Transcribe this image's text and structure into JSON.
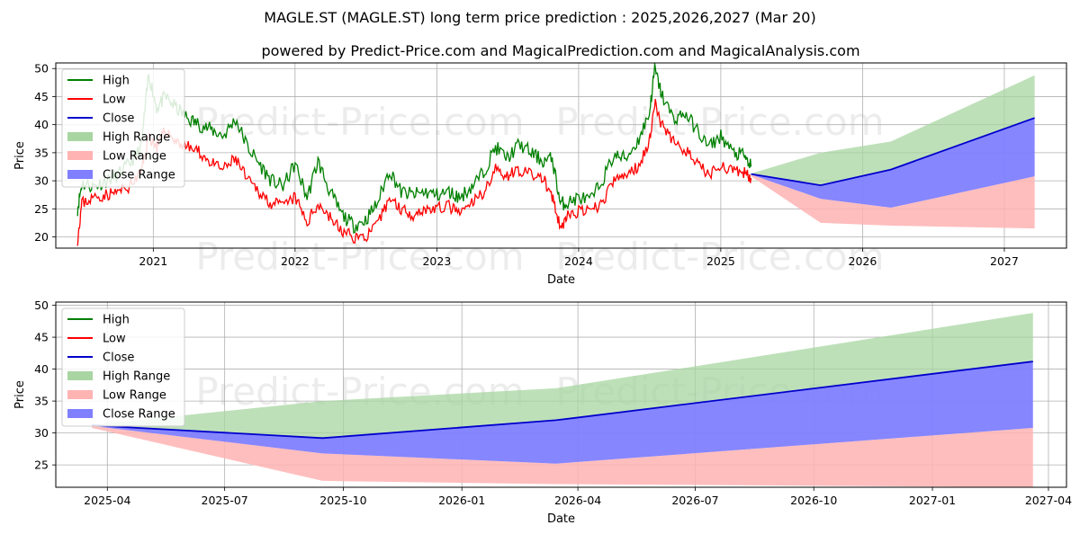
{
  "title": "MAGLE.ST (MAGLE.ST) long term price prediction : 2025,2026,2027 (Mar 20)",
  "subtitle": "powered by Predict-Price.com and MagicalPrediction.com and MagicalAnalysis.com",
  "watermark": "Predict-Price.com",
  "colors": {
    "high": "#008000",
    "low": "#ff0000",
    "close": "#0000cc",
    "high_range": "#a8d5a2",
    "low_range": "#ffb3b3",
    "close_range": "#7f7fff"
  },
  "chart_data": [
    {
      "type": "line",
      "xlabel": "Date",
      "ylabel": "Price",
      "xlim": [
        "2020-04-25",
        "2027-06-10"
      ],
      "ylim": [
        18,
        51
      ],
      "x_ticks": [
        "2021",
        "2022",
        "2023",
        "2024",
        "2025",
        "2026",
        "2027"
      ],
      "x_tick_dates": [
        "2021-01-01",
        "2022-01-01",
        "2023-01-01",
        "2024-01-01",
        "2025-01-01",
        "2026-01-01",
        "2027-01-01"
      ],
      "y_ticks": [
        20,
        25,
        30,
        35,
        40,
        45,
        50
      ],
      "grid": true,
      "legend": "top-left",
      "legend_entries": [
        "High",
        "Low",
        "Close",
        "High Range",
        "Low Range",
        "Close Range"
      ],
      "history": {
        "dates": [
          "2020-06-20",
          "2020-07-01",
          "2020-08-01",
          "2020-09-01",
          "2020-10-01",
          "2020-11-01",
          "2020-12-01",
          "2020-12-20",
          "2021-01-10",
          "2021-02-01",
          "2021-03-01",
          "2021-04-01",
          "2021-05-01",
          "2021-06-01",
          "2021-07-01",
          "2021-08-01",
          "2021-09-01",
          "2021-10-01",
          "2021-11-01",
          "2021-12-01",
          "2022-01-01",
          "2022-02-01",
          "2022-03-01",
          "2022-04-01",
          "2022-05-01",
          "2022-06-01",
          "2022-07-01",
          "2022-08-01",
          "2022-09-01",
          "2022-10-01",
          "2022-11-01",
          "2022-12-01",
          "2023-01-01",
          "2023-02-01",
          "2023-03-01",
          "2023-04-01",
          "2023-05-01",
          "2023-06-01",
          "2023-07-01",
          "2023-08-01",
          "2023-09-01",
          "2023-10-01",
          "2023-10-25",
          "2023-11-15",
          "2023-12-01",
          "2024-01-01",
          "2024-02-01",
          "2024-03-01",
          "2024-04-01",
          "2024-05-01",
          "2024-06-01",
          "2024-07-01",
          "2024-07-15",
          "2024-08-01",
          "2024-09-01",
          "2024-10-01",
          "2024-11-01",
          "2024-12-01",
          "2025-01-01",
          "2025-02-01",
          "2025-03-01",
          "2025-03-20"
        ],
        "high": [
          25.0,
          29.5,
          29.0,
          30.0,
          31.0,
          33.0,
          36.0,
          49.0,
          43.0,
          45.0,
          43.0,
          41.0,
          40.0,
          39.0,
          38.0,
          41.0,
          36.0,
          33.0,
          30.0,
          29.0,
          33.0,
          27.0,
          33.5,
          28.0,
          24.0,
          22.0,
          23.0,
          26.0,
          32.0,
          28.0,
          27.5,
          28.0,
          27.5,
          28.0,
          27.0,
          29.0,
          31.5,
          36.0,
          34.0,
          36.5,
          35.0,
          33.5,
          34.0,
          26.0,
          26.0,
          27.0,
          26.5,
          30.0,
          34.5,
          34.0,
          37.0,
          42.0,
          50.0,
          45.5,
          41.0,
          42.0,
          39.0,
          36.0,
          38.0,
          35.0,
          34.5,
          32.5
        ],
        "low": [
          19.5,
          26.0,
          27.0,
          27.5,
          28.0,
          29.0,
          31.5,
          38.0,
          36.0,
          39.0,
          37.0,
          36.0,
          35.0,
          33.0,
          32.0,
          34.0,
          30.0,
          28.0,
          26.0,
          25.5,
          27.0,
          22.5,
          26.0,
          23.5,
          21.0,
          20.0,
          20.0,
          22.0,
          27.0,
          25.0,
          24.0,
          25.0,
          25.0,
          25.5,
          24.0,
          26.0,
          28.0,
          32.0,
          31.0,
          32.0,
          31.0,
          30.5,
          27.0,
          21.5,
          23.5,
          24.5,
          24.5,
          26.0,
          30.0,
          31.0,
          32.5,
          37.0,
          44.0,
          40.0,
          37.0,
          35.5,
          33.0,
          31.0,
          33.0,
          31.5,
          31.5,
          30.5
        ],
        "close": [
          23.0,
          27.5,
          28.0,
          29.0,
          29.5,
          31.0,
          33.5,
          45.0,
          40.0,
          42.0,
          40.0,
          38.5,
          37.5,
          36.0,
          35.0,
          37.0,
          32.0,
          30.0,
          28.0,
          27.0,
          29.0,
          24.5,
          29.0,
          25.5,
          22.5,
          21.0,
          21.5,
          24.0,
          29.0,
          26.5,
          25.5,
          26.5,
          26.0,
          26.5,
          25.5,
          27.5,
          29.5,
          34.0,
          32.5,
          34.0,
          33.0,
          32.0,
          30.0,
          23.5,
          24.5,
          25.5,
          25.5,
          27.5,
          32.0,
          32.5,
          34.5,
          39.0,
          47.0,
          43.0,
          39.0,
          38.5,
          35.5,
          33.5,
          35.5,
          33.0,
          33.0,
          31.5
        ]
      },
      "forecast": {
        "dates": [
          "2025-03-20",
          "2025-09-15",
          "2026-03-15",
          "2027-03-20"
        ],
        "high_range_top": [
          31.3,
          35.0,
          37.0,
          48.8
        ],
        "low_range_bottom": [
          30.8,
          22.5,
          22.0,
          21.5
        ],
        "close_band_top": [
          31.3,
          29.2,
          32.0,
          41.2
        ],
        "close_band_bottom": [
          31.1,
          26.8,
          25.2,
          30.8
        ],
        "close": [
          31.2,
          29.2,
          32.0,
          41.2
        ]
      }
    },
    {
      "type": "area",
      "xlabel": "Date",
      "ylabel": "Price",
      "xlim": [
        "2025-02-20",
        "2027-04-15"
      ],
      "ylim": [
        21.5,
        50.5
      ],
      "x_ticks": [
        "2025-04",
        "2025-07",
        "2025-10",
        "2026-01",
        "2026-04",
        "2026-07",
        "2026-10",
        "2027-01",
        "2027-04"
      ],
      "x_tick_dates": [
        "2025-04-01",
        "2025-07-01",
        "2025-10-01",
        "2026-01-01",
        "2026-04-01",
        "2026-07-01",
        "2026-10-01",
        "2027-01-01",
        "2027-04-01"
      ],
      "y_ticks": [
        25,
        30,
        35,
        40,
        45,
        50
      ],
      "grid": true,
      "legend": "top-left",
      "legend_entries": [
        "High",
        "Low",
        "Close",
        "High Range",
        "Low Range",
        "Close Range"
      ]
    }
  ]
}
